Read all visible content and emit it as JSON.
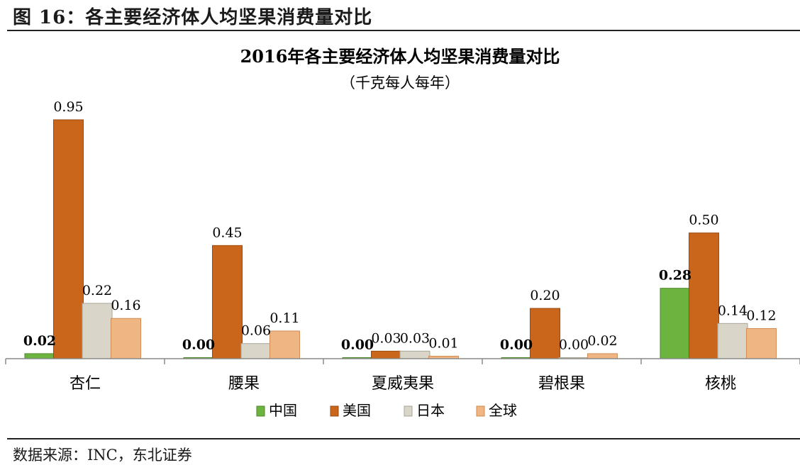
{
  "header": {
    "figure_title": "图 16：各主要经济体人均坚果消费量对比"
  },
  "footer": {
    "source": "数据来源：INC，东北证券"
  },
  "colors": {
    "中国": "#6db33f",
    "美国": "#c9661c",
    "日本": "#d9d6c9",
    "全球": "#efb583"
  },
  "chart_data": {
    "type": "bar",
    "title": "2016年各主要经济体人均坚果消费量对比",
    "subtitle": "（千克每人每年）",
    "categories": [
      "杏仁",
      "腰果",
      "夏威夷果",
      "碧根果",
      "核桃"
    ],
    "series": [
      {
        "name": "中国",
        "values": [
          0.02,
          0.0,
          0.0,
          0.0,
          0.28
        ],
        "labels": [
          "0.02",
          "0.00",
          "0.00",
          "0.00",
          "0.28"
        ]
      },
      {
        "name": "美国",
        "values": [
          0.95,
          0.45,
          0.03,
          0.2,
          0.5
        ],
        "labels": [
          "0.95",
          "0.45",
          "0.03",
          "0.20",
          "0.50"
        ]
      },
      {
        "name": "日本",
        "values": [
          0.22,
          0.06,
          0.03,
          0.0,
          0.14
        ],
        "labels": [
          "0.22",
          "0.06",
          "0.03",
          "0.00",
          "0.14"
        ]
      },
      {
        "name": "全球",
        "values": [
          0.16,
          0.11,
          0.01,
          0.02,
          0.12
        ],
        "labels": [
          "0.16",
          "0.11",
          "0.01",
          "0.02",
          "0.12"
        ]
      }
    ],
    "ylim": [
      0,
      0.95
    ],
    "grid": false,
    "legend": "bottom"
  }
}
